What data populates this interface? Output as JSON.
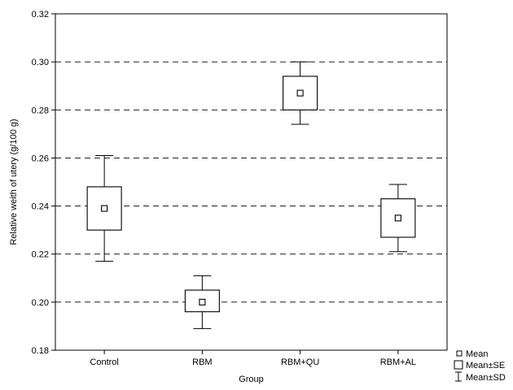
{
  "chart_data": {
    "type": "box",
    "xlabel": "Group",
    "ylabel": "Relative weith of utery (g/100 g)",
    "ylim": [
      0.18,
      0.32
    ],
    "yticks": [
      0.18,
      0.2,
      0.22,
      0.24,
      0.26,
      0.28,
      0.3,
      0.32
    ],
    "ytick_labels": [
      "0.18",
      "0.20",
      "0.22",
      "0.24",
      "0.26",
      "0.28",
      "0.30",
      "0.32"
    ],
    "grid": "horizontal-dashed",
    "categories": [
      "Control",
      "RBM",
      "RBM+QU",
      "RBM+AL"
    ],
    "mean": [
      0.239,
      0.2,
      0.287,
      0.235
    ],
    "se_low": [
      0.23,
      0.196,
      0.28,
      0.227
    ],
    "se_high": [
      0.248,
      0.205,
      0.294,
      0.243
    ],
    "sd_low": [
      0.217,
      0.189,
      0.274,
      0.221
    ],
    "sd_high": [
      0.261,
      0.211,
      0.3,
      0.249
    ],
    "legend_position": "bottom-right",
    "legend": {
      "mean": "Mean",
      "se": "Mean±SE",
      "sd": "Mean±SD"
    }
  }
}
